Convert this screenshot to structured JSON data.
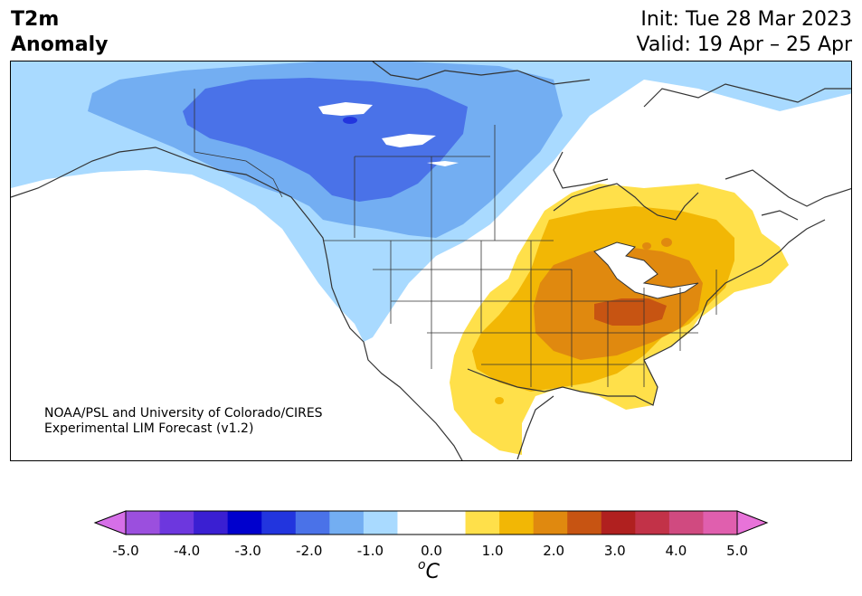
{
  "header": {
    "title_line1": "T2m",
    "title_line2": "Anomaly",
    "init_text": "Init: Tue 28 Mar 2023",
    "valid_text": "Valid: 19 Apr – 25 Apr"
  },
  "credit": {
    "line1": "NOAA/PSL and University of Colorado/CIRES",
    "line2": "Experimental LIM Forecast (v1.2)"
  },
  "colorbar": {
    "ticks": [
      "-5.0",
      "-4.0",
      "-3.0",
      "-2.0",
      "-1.0",
      "0.0",
      "1.0",
      "2.0",
      "3.0",
      "4.0",
      "5.0"
    ],
    "unit_sup": "o",
    "unit_main": "C",
    "colors": [
      "#d66fe8",
      "#9b4fde",
      "#6d37de",
      "#3a1fd2",
      "#0000cd",
      "#2235de",
      "#4a72e8",
      "#73aef2",
      "#a9daff",
      "#ffffff",
      "#ffffff",
      "#ffe04a",
      "#f2b705",
      "#e0890f",
      "#c75412",
      "#b0201f",
      "#c23248",
      "#d04a80",
      "#e05fae",
      "#e873d9"
    ]
  },
  "map": {
    "region": "North America",
    "variable": "2m temperature anomaly",
    "colors": {
      "light_blue": "#a9daff",
      "mid_blue": "#73aef2",
      "blue": "#4a72e8",
      "yellow": "#ffe04a",
      "gold": "#f2b705",
      "orange": "#e0890f",
      "dark_orange": "#c75412",
      "coast": "#333333"
    }
  }
}
